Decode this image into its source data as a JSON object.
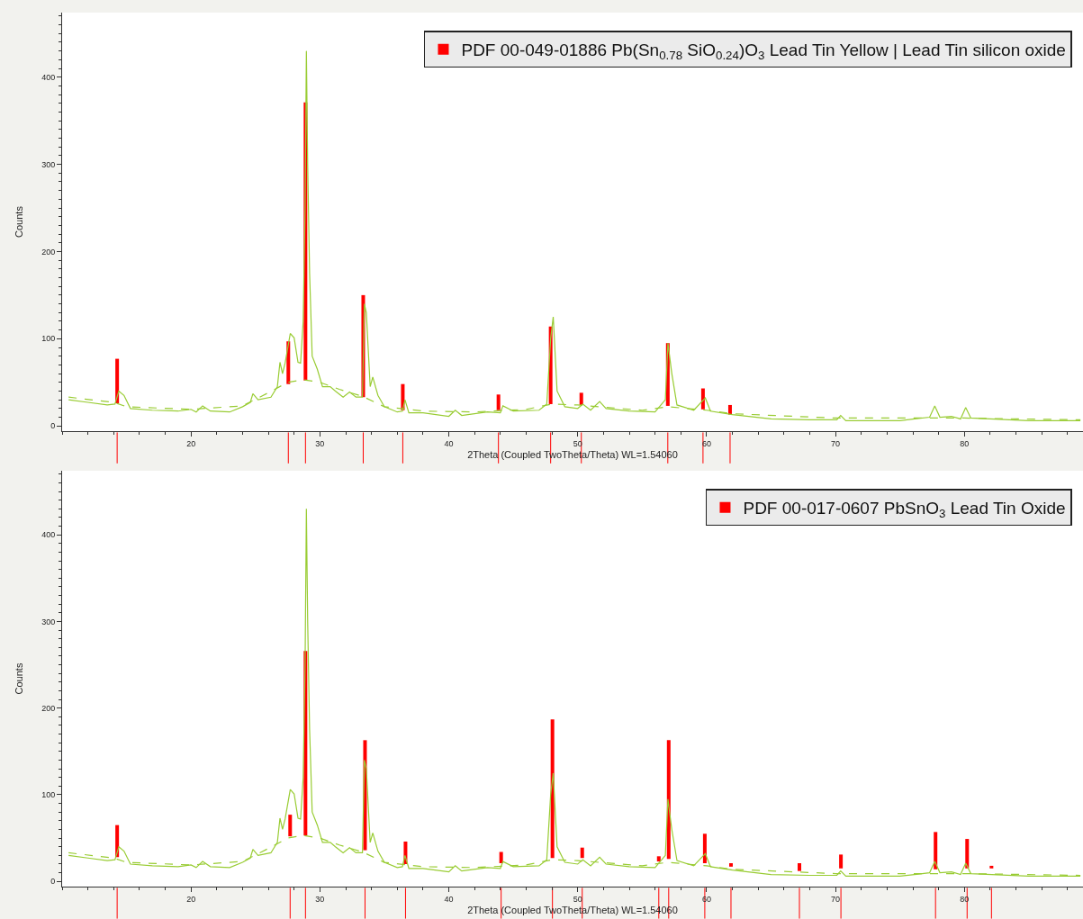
{
  "chart_data": [
    {
      "type": "line",
      "xlabel": "2Theta (Coupled TwoTheta/Theta) WL=1.54060",
      "ylabel": "Counts",
      "xlim": [
        10,
        89.2
      ],
      "ylim": [
        -6,
        474
      ],
      "xticks": [
        20,
        30,
        40,
        50,
        60,
        70,
        80
      ],
      "yticks": [
        0,
        100,
        200,
        300,
        400
      ],
      "legend": "top right",
      "series": [
        {
          "color": "#99cc33",
          "x": [
            10.5,
            12,
            13.5,
            14.1,
            14.4,
            14.8,
            15.3,
            17,
            19,
            20,
            20.4,
            20.9,
            21.5,
            23,
            24,
            24.6,
            24.8,
            25.2,
            26.2,
            26.7,
            26.9,
            27.1,
            27.3,
            27.7,
            28.0,
            28.3,
            28.5,
            28.7,
            28.85,
            28.95,
            29.05,
            29.2,
            29.4,
            29.8,
            30.2,
            30.8,
            31.2,
            31.8,
            32.3,
            32.8,
            33.3,
            33.45,
            33.6,
            33.9,
            34.1,
            34.5,
            35,
            36,
            36.4,
            36.6,
            36.9,
            38,
            40,
            40.5,
            41,
            43,
            44,
            44.2,
            45,
            47,
            47.6,
            47.9,
            48.1,
            48.4,
            49,
            50,
            50.4,
            51,
            51.7,
            52.2,
            54,
            56,
            56.8,
            57.0,
            57.3,
            57.7,
            59,
            59.9,
            60.3,
            62,
            65,
            68,
            70.1,
            70.4,
            70.8,
            75,
            77.3,
            77.7,
            78.1,
            79,
            79.7,
            80.1,
            80.5,
            85,
            89
          ],
          "values": [
            30,
            27,
            24,
            25,
            40,
            35,
            20,
            18,
            17,
            19,
            16,
            23,
            17,
            16,
            22,
            27,
            37,
            30,
            33,
            45,
            73,
            60,
            72,
            106,
            101,
            73,
            72,
            120,
            250,
            430,
            300,
            175,
            80,
            65,
            45,
            45,
            40,
            33,
            39,
            33,
            33,
            140,
            130,
            45,
            56,
            35,
            22,
            16,
            17,
            30,
            15,
            15,
            11,
            18,
            12,
            16,
            15,
            23,
            17,
            18,
            25,
            100,
            125,
            40,
            22,
            20,
            25,
            18,
            28,
            20,
            17,
            16,
            30,
            95,
            60,
            24,
            18,
            32,
            17,
            13,
            8,
            7,
            7,
            12,
            6,
            6,
            10,
            23,
            10,
            11,
            8,
            21,
            9,
            6,
            6
          ]
        },
        {
          "color": "#99cc33",
          "line_style": "dashed",
          "x": [
            10.5,
            14,
            15,
            20,
            24,
            26,
            27.5,
            28.7,
            30,
            31.5,
            33.3,
            35,
            38,
            42,
            46,
            48,
            50,
            55,
            57,
            60,
            62,
            70,
            80,
            89
          ],
          "values": [
            33,
            27,
            22,
            19,
            23,
            38,
            50,
            53,
            50,
            42,
            34,
            22,
            17,
            16,
            19,
            25,
            24,
            18,
            22,
            18,
            14,
            9,
            9,
            7
          ]
        },
        {
          "type": "bar",
          "name": "PDF 00-049-01886 Pb(Sn$_{0.78}$ SiO$_{0.24}$)O$_{3}$ Lead Tin Yellow | Lead Tin silicon oxide",
          "color": "#ff0000",
          "x": [
            14.27,
            27.55,
            28.88,
            33.36,
            36.43,
            43.85,
            47.9,
            50.28,
            56.99,
            59.72,
            61.82
          ],
          "base": [
            26,
            48,
            52,
            33,
            18,
            18,
            25,
            24,
            23,
            19,
            13
          ],
          "values": [
            51,
            49,
            319,
            117,
            30,
            18,
            89,
            14,
            72,
            24,
            11
          ]
        }
      ]
    },
    {
      "type": "line",
      "xlabel": "2Theta (Coupled TwoTheta/Theta) WL=1.54060",
      "ylabel": "Counts",
      "xlim": [
        10,
        89.2
      ],
      "ylim": [
        -6,
        474
      ],
      "xticks": [
        20,
        30,
        40,
        50,
        60,
        70,
        80
      ],
      "yticks": [
        0,
        100,
        200,
        300,
        400
      ],
      "legend": "top right",
      "series": [
        {
          "color": "#99cc33",
          "x": [
            10.5,
            12,
            13.5,
            14.1,
            14.4,
            14.8,
            15.3,
            17,
            19,
            20,
            20.4,
            20.9,
            21.5,
            23,
            24,
            24.6,
            24.8,
            25.2,
            26.2,
            26.7,
            26.9,
            27.1,
            27.3,
            27.7,
            28.0,
            28.3,
            28.5,
            28.7,
            28.85,
            28.95,
            29.05,
            29.2,
            29.4,
            29.8,
            30.2,
            30.8,
            31.2,
            31.8,
            32.3,
            32.8,
            33.3,
            33.45,
            33.6,
            33.9,
            34.1,
            34.5,
            35,
            36,
            36.4,
            36.6,
            36.9,
            38,
            40,
            40.5,
            41,
            43,
            44,
            44.2,
            45,
            47,
            47.6,
            47.9,
            48.1,
            48.4,
            49,
            50,
            50.4,
            51,
            51.7,
            52.2,
            54,
            56,
            56.8,
            57.0,
            57.3,
            57.7,
            59,
            59.9,
            60.3,
            62,
            65,
            68,
            70.1,
            70.4,
            70.8,
            75,
            77.3,
            77.7,
            78.1,
            79,
            79.7,
            80.1,
            80.5,
            85,
            89
          ],
          "values": [
            30,
            27,
            24,
            25,
            40,
            35,
            20,
            18,
            17,
            19,
            16,
            23,
            17,
            16,
            22,
            27,
            37,
            30,
            33,
            45,
            73,
            60,
            72,
            106,
            101,
            73,
            72,
            120,
            250,
            430,
            300,
            175,
            80,
            65,
            45,
            45,
            40,
            33,
            39,
            33,
            33,
            140,
            130,
            45,
            56,
            35,
            22,
            16,
            17,
            30,
            15,
            15,
            11,
            18,
            12,
            16,
            15,
            23,
            17,
            18,
            25,
            100,
            125,
            40,
            22,
            20,
            25,
            18,
            28,
            20,
            17,
            16,
            30,
            95,
            60,
            24,
            18,
            32,
            17,
            13,
            8,
            7,
            7,
            12,
            6,
            6,
            10,
            23,
            10,
            11,
            8,
            21,
            9,
            6,
            6
          ]
        },
        {
          "color": "#99cc33",
          "line_style": "dashed",
          "x": [
            10.5,
            14,
            15,
            20,
            24,
            26,
            27.5,
            28.7,
            30,
            31.5,
            33.3,
            35,
            38,
            42,
            46,
            48,
            50,
            55,
            57,
            60,
            62,
            70,
            80,
            89
          ],
          "values": [
            33,
            27,
            22,
            19,
            23,
            38,
            50,
            53,
            50,
            42,
            34,
            22,
            17,
            16,
            19,
            25,
            24,
            18,
            22,
            18,
            14,
            9,
            9,
            7
          ]
        },
        {
          "type": "bar",
          "name": "PDF 00-017-0607 PbSnO$_{3}$ Lead Tin Oxide",
          "color": "#ff0000",
          "x": [
            14.27,
            27.69,
            28.88,
            33.5,
            36.64,
            44.06,
            48.04,
            50.35,
            56.29,
            57.06,
            59.86,
            61.89,
            67.2,
            70.42,
            77.76,
            80.21,
            82.1
          ],
          "base": [
            28,
            52,
            53,
            36,
            20,
            21,
            27,
            27,
            23,
            26,
            21,
            17,
            12,
            15,
            14,
            15,
            15
          ],
          "values": [
            37,
            25,
            213,
            127,
            26,
            13,
            160,
            12,
            6,
            137,
            34,
            4,
            9,
            16,
            43,
            34,
            3
          ]
        }
      ]
    }
  ]
}
